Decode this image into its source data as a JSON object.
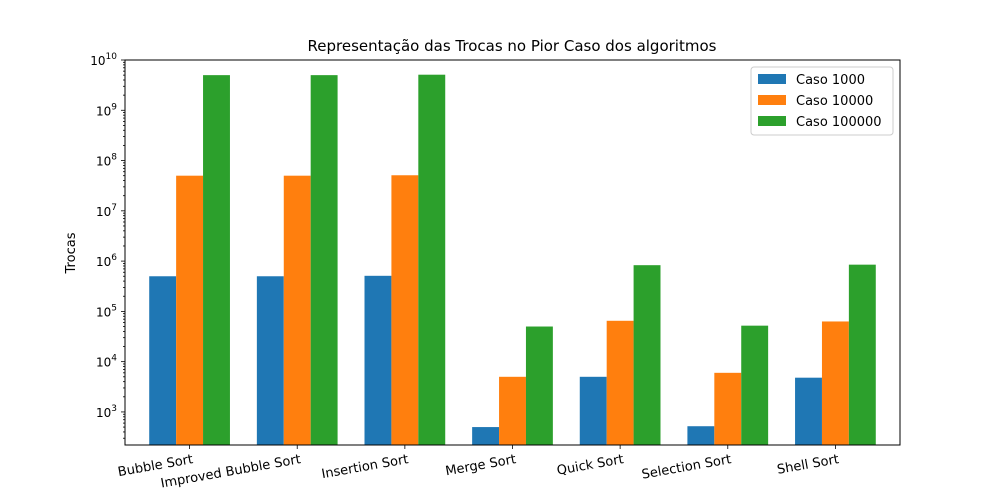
{
  "chart_data": {
    "type": "bar",
    "title": "Representação das Trocas no Pior Caso dos algoritmos",
    "xlabel": "",
    "ylabel": "Trocas",
    "yscale": "log",
    "ylim": [
      220,
      10000000000
    ],
    "grid": false,
    "legend_position": "top-right",
    "categories": [
      "Bubble Sort",
      "Improved Bubble Sort",
      "Insertion Sort",
      "Merge Sort",
      "Quick Sort",
      "Selection Sort",
      "Shell Sort"
    ],
    "series": [
      {
        "name": "Caso 1000",
        "color": "#1f77b4",
        "values": [
          499500,
          499500,
          510000,
          500,
          5000,
          520,
          4800
        ]
      },
      {
        "name": "Caso 10000",
        "color": "#ff7f0e",
        "values": [
          49995000,
          49995000,
          51000000,
          5000,
          65000,
          6000,
          63000
        ]
      },
      {
        "name": "Caso 100000",
        "color": "#2ca02c",
        "values": [
          4999950000,
          4999950000,
          5100000000,
          50000,
          830000,
          52000,
          850000
        ]
      }
    ],
    "y_ticks": [
      {
        "base": "10",
        "exp": "3",
        "value": 1000
      },
      {
        "base": "10",
        "exp": "4",
        "value": 10000
      },
      {
        "base": "10",
        "exp": "5",
        "value": 100000
      },
      {
        "base": "10",
        "exp": "6",
        "value": 1000000
      },
      {
        "base": "10",
        "exp": "7",
        "value": 10000000
      },
      {
        "base": "10",
        "exp": "8",
        "value": 100000000
      },
      {
        "base": "10",
        "exp": "9",
        "value": 1000000000
      },
      {
        "base": "10",
        "exp": "10",
        "value": 10000000000
      }
    ]
  }
}
